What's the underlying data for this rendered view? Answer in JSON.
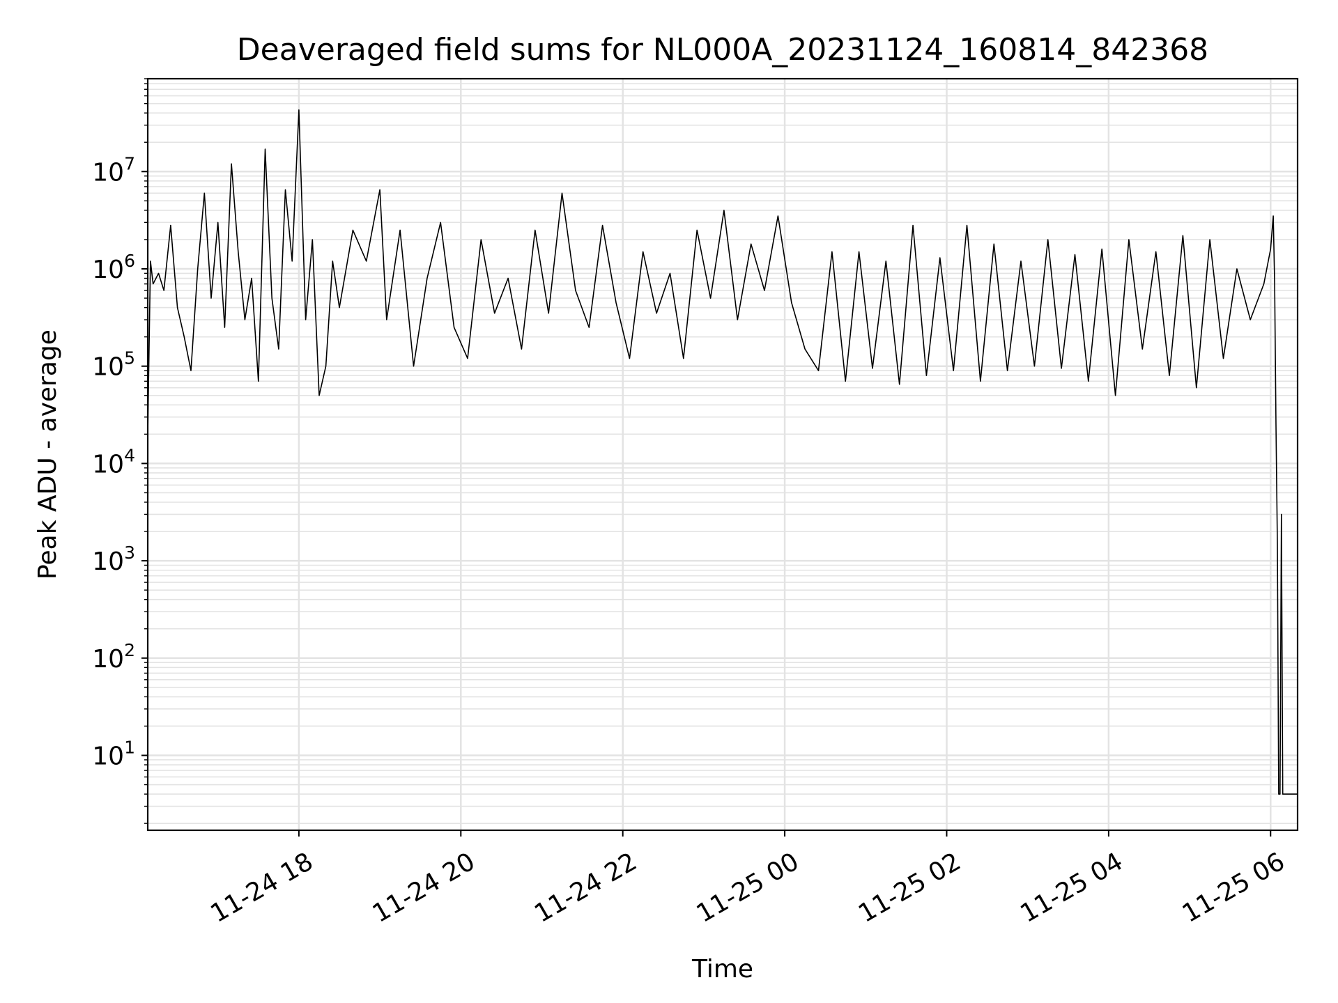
{
  "chart_data": {
    "type": "line",
    "title": "Deaveraged field sums for NL000A_20231124_160814_842368",
    "xlabel": "Time",
    "ylabel": "Peak ADU - average",
    "yscale": "log",
    "grid": "both (major and minor)",
    "legend": "none",
    "colors": {
      "line": "#000000",
      "grid": "#e3e3e3"
    },
    "x_range": [
      "2023-11-24 16:08",
      "2023-11-25 06:20"
    ],
    "ylim": [
      1.7,
      90000000
    ],
    "x_ticks": [
      {
        "value": "2023-11-24 18:00",
        "label": "11-24 18"
      },
      {
        "value": "2023-11-24 20:00",
        "label": "11-24 20"
      },
      {
        "value": "2023-11-24 22:00",
        "label": "11-24 22"
      },
      {
        "value": "2023-11-25 00:00",
        "label": "11-25 00"
      },
      {
        "value": "2023-11-25 02:00",
        "label": "11-25 02"
      },
      {
        "value": "2023-11-25 04:00",
        "label": "11-25 04"
      },
      {
        "value": "2023-11-25 06:00",
        "label": "11-25 06"
      }
    ],
    "y_ticks": [
      {
        "value": 10,
        "base": "10",
        "exp": "1"
      },
      {
        "value": 100,
        "base": "10",
        "exp": "2"
      },
      {
        "value": 1000,
        "base": "10",
        "exp": "3"
      },
      {
        "value": 10000,
        "base": "10",
        "exp": "4"
      },
      {
        "value": 100000,
        "base": "10",
        "exp": "5"
      },
      {
        "value": 1000000,
        "base": "10",
        "exp": "6"
      },
      {
        "value": 10000000,
        "base": "10",
        "exp": "7"
      }
    ],
    "series": [
      {
        "x": [
          "2023-11-24 16:08",
          "2023-11-24 16:10",
          "2023-11-24 16:12",
          "2023-11-24 16:16",
          "2023-11-24 16:20",
          "2023-11-24 16:25",
          "2023-11-24 16:30",
          "2023-11-24 16:35",
          "2023-11-24 16:40",
          "2023-11-24 16:45",
          "2023-11-24 16:50",
          "2023-11-24 16:55",
          "2023-11-24 17:00",
          "2023-11-24 17:05",
          "2023-11-24 17:10",
          "2023-11-24 17:15",
          "2023-11-24 17:20",
          "2023-11-24 17:25",
          "2023-11-24 17:30",
          "2023-11-24 17:35",
          "2023-11-24 17:40",
          "2023-11-24 17:45",
          "2023-11-24 17:50",
          "2023-11-24 17:55",
          "2023-11-24 18:00",
          "2023-11-24 18:05",
          "2023-11-24 18:10",
          "2023-11-24 18:15",
          "2023-11-24 18:20",
          "2023-11-24 18:25",
          "2023-11-24 18:30",
          "2023-11-24 18:40",
          "2023-11-24 18:50",
          "2023-11-24 19:00",
          "2023-11-24 19:05",
          "2023-11-24 19:15",
          "2023-11-24 19:25",
          "2023-11-24 19:35",
          "2023-11-24 19:45",
          "2023-11-24 19:55",
          "2023-11-24 20:05",
          "2023-11-24 20:15",
          "2023-11-24 20:25",
          "2023-11-24 20:35",
          "2023-11-24 20:45",
          "2023-11-24 20:55",
          "2023-11-24 21:05",
          "2023-11-24 21:15",
          "2023-11-24 21:25",
          "2023-11-24 21:35",
          "2023-11-24 21:45",
          "2023-11-24 21:55",
          "2023-11-24 22:05",
          "2023-11-24 22:15",
          "2023-11-24 22:25",
          "2023-11-24 22:35",
          "2023-11-24 22:45",
          "2023-11-24 22:55",
          "2023-11-24 23:05",
          "2023-11-24 23:15",
          "2023-11-24 23:25",
          "2023-11-24 23:35",
          "2023-11-24 23:45",
          "2023-11-24 23:55",
          "2023-11-25 00:05",
          "2023-11-25 00:15",
          "2023-11-25 00:25",
          "2023-11-25 00:35",
          "2023-11-25 00:45",
          "2023-11-25 00:55",
          "2023-11-25 01:05",
          "2023-11-25 01:15",
          "2023-11-25 01:25",
          "2023-11-25 01:35",
          "2023-11-25 01:45",
          "2023-11-25 01:55",
          "2023-11-25 02:05",
          "2023-11-25 02:15",
          "2023-11-25 02:25",
          "2023-11-25 02:35",
          "2023-11-25 02:45",
          "2023-11-25 02:55",
          "2023-11-25 03:05",
          "2023-11-25 03:15",
          "2023-11-25 03:25",
          "2023-11-25 03:35",
          "2023-11-25 03:45",
          "2023-11-25 03:55",
          "2023-11-25 04:05",
          "2023-11-25 04:15",
          "2023-11-25 04:25",
          "2023-11-25 04:35",
          "2023-11-25 04:45",
          "2023-11-25 04:55",
          "2023-11-25 05:05",
          "2023-11-25 05:15",
          "2023-11-25 05:25",
          "2023-11-25 05:35",
          "2023-11-25 05:45",
          "2023-11-25 05:55",
          "2023-11-25 06:00",
          "2023-11-25 06:02",
          "2023-11-25 06:03",
          "2023-11-25 06:04",
          "2023-11-25 06:05",
          "2023-11-25 06:06",
          "2023-11-25 06:07",
          "2023-11-25 06:08",
          "2023-11-25 06:09",
          "2023-11-25 06:10",
          "2023-11-25 06:11",
          "2023-11-25 06:12",
          "2023-11-25 06:14",
          "2023-11-25 06:16",
          "2023-11-25 06:18",
          "2023-11-25 06:20"
        ],
        "values": [
          20000,
          1200000,
          700000,
          900000,
          600000,
          2800000,
          400000,
          200000,
          90000,
          1000000,
          6000000,
          500000,
          3000000,
          250000,
          12000000,
          1500000,
          300000,
          800000,
          70000,
          17000000,
          500000,
          150000,
          6500000,
          1200000,
          43000000,
          300000,
          2000000,
          50000,
          100000,
          1200000,
          400000,
          2500000,
          1200000,
          6500000,
          300000,
          2500000,
          100000,
          800000,
          3000000,
          250000,
          120000,
          2000000,
          350000,
          800000,
          150000,
          2500000,
          350000,
          6000000,
          600000,
          250000,
          2800000,
          450000,
          120000,
          1500000,
          350000,
          900000,
          120000,
          2500000,
          500000,
          4000000,
          300000,
          1800000,
          600000,
          3500000,
          450000,
          150000,
          90000,
          1500000,
          70000,
          1500000,
          95000,
          1200000,
          65000,
          2800000,
          80000,
          1300000,
          90000,
          2800000,
          70000,
          1800000,
          90000,
          1200000,
          100000,
          2000000,
          95000,
          1400000,
          70000,
          1600000,
          50000,
          2000000,
          150000,
          1500000,
          80000,
          2200000,
          60000,
          2000000,
          120000,
          1000000,
          300000,
          700000,
          1600000,
          3500000,
          700000,
          25000,
          1500,
          4,
          4,
          3000,
          4,
          4,
          4,
          4,
          4,
          4,
          4,
          4
        ]
      }
    ]
  }
}
